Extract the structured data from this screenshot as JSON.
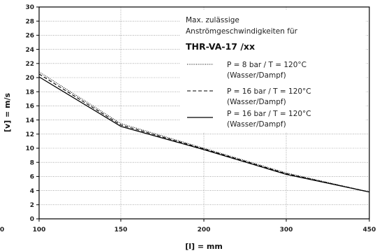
{
  "chart_data": {
    "type": "line",
    "xlabel": "[l] = mm",
    "ylabel": "[v] = m/s",
    "x_ticks": [
      {
        "value": 100,
        "label": "100"
      },
      {
        "value": 150,
        "label": "150"
      },
      {
        "value": 200,
        "label": "200"
      },
      {
        "value": 300,
        "label": "300"
      },
      {
        "value": 450,
        "label": "450"
      }
    ],
    "x_clipped_label": "0",
    "ylim": [
      0,
      30
    ],
    "y_ticks": [
      0,
      2,
      4,
      6,
      8,
      10,
      12,
      14,
      16,
      18,
      20,
      22,
      24,
      26,
      28,
      30
    ],
    "grid": true,
    "legend": {
      "position": "top-right",
      "title_line1": "Max. zulässige",
      "title_line2": "Anströmgeschwindigkeiten für",
      "model": "THR-VA-17 /xx"
    },
    "series": [
      {
        "name_line1": "P =   8 bar  /  T = 120°C",
        "name_line2": "(Wasser/Dampf)",
        "style": "dotted",
        "x": [
          100,
          150,
          200,
          300,
          450
        ],
        "y": [
          20.8,
          13.5,
          10.0,
          6.5,
          3.8
        ]
      },
      {
        "name_line1": "P =  16 bar  /  T = 120°C",
        "name_line2": "(Wasser/Dampf)",
        "style": "dashed",
        "x": [
          100,
          150,
          200,
          300,
          450
        ],
        "y": [
          20.5,
          13.3,
          9.9,
          6.4,
          3.8
        ]
      },
      {
        "name_line1": "P =  16 bar  /  T = 120°C",
        "name_line2": "(Wasser/Dampf)",
        "style": "solid",
        "x": [
          100,
          150,
          200,
          300,
          450
        ],
        "y": [
          20.1,
          13.1,
          9.8,
          6.3,
          3.8
        ]
      }
    ]
  }
}
